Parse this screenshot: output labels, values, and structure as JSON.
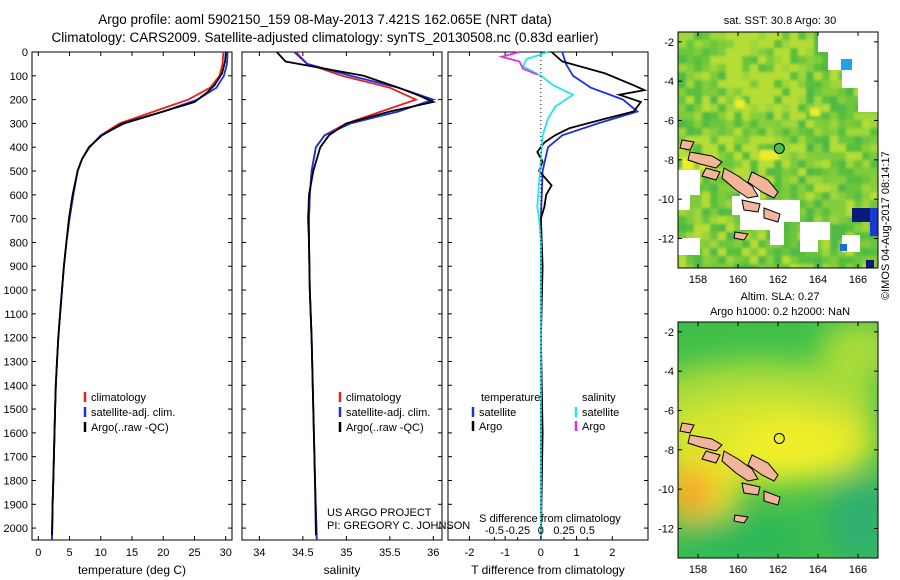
{
  "title": {
    "line1": "Argo profile: aoml 5902150_159 08-May-2013 7.421S 162.065E (NRT data)",
    "line2": "Climatology: CARS2009. Satellite-adjusted climatology: synTS_20130508.nc (0.83d earlier)"
  },
  "colors": {
    "climatology": "#e8201a",
    "satellite": "#1b2fe0",
    "argo": "#000000",
    "sat_salinity": "#22e6ef",
    "argo_salinity": "#e42ee0"
  },
  "depth_axis": {
    "ylim": [
      2050,
      0
    ],
    "ticks": [
      0,
      100,
      200,
      300,
      400,
      500,
      600,
      700,
      800,
      900,
      1000,
      1100,
      1200,
      1300,
      1400,
      1500,
      1600,
      1700,
      1800,
      1900,
      2000
    ]
  },
  "credit": {
    "line1": "US ARGO PROJECT",
    "line2": "PI: GREGORY C. JOHNSON"
  },
  "stamp": "©IMOS 04-Aug-2017 08:14:17",
  "chart_data": [
    {
      "type": "line",
      "id": "temperature",
      "xlabel": "temperature (deg C)",
      "ylabel": "depth",
      "xlim": [
        -1,
        31
      ],
      "ylim": [
        2050,
        0
      ],
      "xticks": [
        0,
        5,
        10,
        15,
        20,
        25,
        30
      ],
      "xtick_labels": [
        "0",
        "5",
        "10",
        "15",
        "20",
        "25",
        "30"
      ],
      "legend": [
        "climatology",
        "satellite-adj. clim.",
        "Argo(..raw -QC)"
      ],
      "series": [
        {
          "name": "climatology",
          "color": "#e8201a",
          "points": [
            [
              29.6,
              0
            ],
            [
              29.5,
              50
            ],
            [
              29,
              100
            ],
            [
              27.5,
              150
            ],
            [
              24,
              200
            ],
            [
              18.5,
              250
            ],
            [
              13,
              300
            ],
            [
              10,
              350
            ],
            [
              8.2,
              400
            ],
            [
              7,
              450
            ],
            [
              6.3,
              500
            ],
            [
              5.6,
              600
            ],
            [
              5,
              700
            ],
            [
              4.5,
              800
            ],
            [
              4.1,
              900
            ],
            [
              3.8,
              1000
            ],
            [
              3.5,
              1100
            ],
            [
              3.2,
              1200
            ],
            [
              3,
              1300
            ],
            [
              2.8,
              1400
            ],
            [
              2.7,
              1500
            ],
            [
              2.6,
              1600
            ],
            [
              2.5,
              1700
            ],
            [
              2.4,
              1800
            ],
            [
              2.3,
              1900
            ],
            [
              2.2,
              2050
            ]
          ]
        },
        {
          "name": "satellite",
          "color": "#1b2fe0",
          "points": [
            [
              30.3,
              0
            ],
            [
              30.2,
              50
            ],
            [
              29.7,
              100
            ],
            [
              28.5,
              150
            ],
            [
              25.5,
              200
            ],
            [
              20,
              250
            ],
            [
              13.8,
              300
            ],
            [
              10,
              350
            ],
            [
              8.2,
              400
            ],
            [
              7,
              450
            ],
            [
              6.3,
              500
            ],
            [
              5.6,
              600
            ],
            [
              5,
              700
            ],
            [
              4.5,
              800
            ],
            [
              4.1,
              900
            ],
            [
              3.8,
              1000
            ],
            [
              3.5,
              1100
            ],
            [
              3.2,
              1200
            ],
            [
              3,
              1300
            ],
            [
              2.8,
              1400
            ],
            [
              2.7,
              1500
            ],
            [
              2.6,
              1600
            ],
            [
              2.5,
              1700
            ],
            [
              2.4,
              1800
            ],
            [
              2.3,
              1900
            ],
            [
              2.2,
              2050
            ]
          ]
        },
        {
          "name": "argo",
          "color": "#000000",
          "points": [
            [
              30,
              0
            ],
            [
              29.9,
              40
            ],
            [
              29.4,
              90
            ],
            [
              28.2,
              140
            ],
            [
              27,
              170
            ],
            [
              25,
              210
            ],
            [
              20,
              250
            ],
            [
              13.5,
              300
            ],
            [
              10.2,
              350
            ],
            [
              8.1,
              400
            ],
            [
              7,
              450
            ],
            [
              6.3,
              500
            ],
            [
              5.5,
              600
            ],
            [
              4.9,
              700
            ],
            [
              4.5,
              800
            ],
            [
              4.1,
              900
            ],
            [
              3.8,
              1000
            ],
            [
              3.5,
              1100
            ],
            [
              3.2,
              1200
            ],
            [
              3,
              1300
            ],
            [
              2.8,
              1400
            ],
            [
              2.7,
              1500
            ],
            [
              2.6,
              1600
            ],
            [
              2.5,
              1700
            ],
            [
              2.4,
              1800
            ],
            [
              2.3,
              1900
            ],
            [
              2.2,
              2030
            ]
          ]
        }
      ]
    },
    {
      "type": "line",
      "id": "salinity",
      "xlabel": "salinity",
      "ylabel": "depth",
      "xlim": [
        33.8,
        36.1
      ],
      "xticks": [
        34,
        34.5,
        35,
        35.5,
        36
      ],
      "xtick_labels": [
        "34",
        "34.5",
        "35",
        "35.5",
        "36"
      ],
      "legend": [
        "climatology",
        "satellite-adj. clim.",
        "Argo(..raw -QC)"
      ],
      "series": [
        {
          "name": "climatology",
          "color": "#e8201a",
          "points": [
            [
              34.42,
              0
            ],
            [
              34.55,
              50
            ],
            [
              34.95,
              100
            ],
            [
              35.5,
              150
            ],
            [
              35.8,
              200
            ],
            [
              35.4,
              250
            ],
            [
              35,
              300
            ],
            [
              34.75,
              350
            ],
            [
              34.65,
              400
            ],
            [
              34.6,
              500
            ],
            [
              34.58,
              600
            ],
            [
              34.57,
              700
            ],
            [
              34.57,
              800
            ],
            [
              34.58,
              1000
            ],
            [
              34.6,
              1200
            ],
            [
              34.62,
              1500
            ],
            [
              34.64,
              1800
            ],
            [
              34.66,
              2050
            ]
          ]
        },
        {
          "name": "satellite",
          "color": "#1b2fe0",
          "points": [
            [
              34.4,
              0
            ],
            [
              34.55,
              50
            ],
            [
              35.05,
              100
            ],
            [
              35.6,
              150
            ],
            [
              36,
              200
            ],
            [
              35.6,
              250
            ],
            [
              35.05,
              300
            ],
            [
              34.75,
              350
            ],
            [
              34.65,
              400
            ],
            [
              34.6,
              500
            ],
            [
              34.58,
              600
            ],
            [
              34.57,
              700
            ],
            [
              34.57,
              800
            ],
            [
              34.58,
              1000
            ],
            [
              34.6,
              1200
            ],
            [
              34.62,
              1500
            ],
            [
              34.64,
              1800
            ],
            [
              34.66,
              2050
            ]
          ]
        },
        {
          "name": "argo",
          "color": "#000000",
          "points": [
            [
              34.2,
              0
            ],
            [
              34.3,
              40
            ],
            [
              34.9,
              80
            ],
            [
              35.2,
              100
            ],
            [
              35.6,
              150
            ],
            [
              35.85,
              185
            ],
            [
              36,
              210
            ],
            [
              35.5,
              250
            ],
            [
              35,
              300
            ],
            [
              34.8,
              350
            ],
            [
              34.7,
              400
            ],
            [
              34.62,
              500
            ],
            [
              34.57,
              600
            ],
            [
              34.56,
              700
            ],
            [
              34.57,
              800
            ],
            [
              34.58,
              1000
            ],
            [
              34.6,
              1200
            ],
            [
              34.62,
              1500
            ],
            [
              34.64,
              1800
            ],
            [
              34.65,
              2030
            ]
          ]
        }
      ]
    },
    {
      "type": "line",
      "id": "differences",
      "xlabel_top": "S difference from climatology",
      "xlabel": "T difference from climatology",
      "xlim_T": [
        -2.6,
        3
      ],
      "xticks_T": [
        -2,
        -1,
        0,
        1,
        2
      ],
      "xtick_labels_T": [
        "-2",
        "-1",
        "0",
        "1",
        "2"
      ],
      "xticks_S": [
        -0.5,
        -0.25,
        0,
        0.25,
        0.5
      ],
      "xtick_labels_S": [
        "-0.5",
        "-0.25",
        "0",
        "0.25",
        "0.5"
      ],
      "legend_headers": [
        "temperature",
        "salinity"
      ],
      "legend": [
        "satellite",
        "Argo",
        "satellite",
        "Argo"
      ],
      "series": [
        {
          "name": "T satellite",
          "color": "#1b2fe0",
          "points": [
            [
              0.6,
              0
            ],
            [
              0.7,
              50
            ],
            [
              0.9,
              100
            ],
            [
              1.4,
              150
            ],
            [
              2.3,
              200
            ],
            [
              2.7,
              250
            ],
            [
              1.6,
              300
            ],
            [
              0.6,
              350
            ],
            [
              0.2,
              400
            ],
            [
              0.05,
              500
            ],
            [
              0,
              700
            ],
            [
              0,
              1000
            ],
            [
              0,
              2050
            ]
          ]
        },
        {
          "name": "T argo",
          "color": "#000000",
          "points": [
            [
              0.3,
              0
            ],
            [
              0.6,
              40
            ],
            [
              1.8,
              90
            ],
            [
              2.6,
              140
            ],
            [
              2.9,
              160
            ],
            [
              2.2,
              180
            ],
            [
              2.8,
              210
            ],
            [
              2.6,
              250
            ],
            [
              1.8,
              280
            ],
            [
              0.8,
              320
            ],
            [
              0.4,
              350
            ],
            [
              0.1,
              380
            ],
            [
              -0.1,
              420
            ],
            [
              0.05,
              460
            ],
            [
              -0.05,
              500
            ],
            [
              0.3,
              560
            ],
            [
              0.15,
              600
            ],
            [
              0.1,
              650
            ],
            [
              0,
              700
            ],
            [
              0.05,
              900
            ],
            [
              0,
              1200
            ],
            [
              0.05,
              1600
            ],
            [
              0,
              2030
            ]
          ]
        },
        {
          "name": "S satellite",
          "color": "#22e6ef",
          "points": [
            [
              0.2,
              0
            ],
            [
              -0.4,
              30
            ],
            [
              -0.5,
              60
            ],
            [
              0,
              100
            ],
            [
              0.35,
              140
            ],
            [
              0.9,
              180
            ],
            [
              0.4,
              230
            ],
            [
              0.2,
              280
            ],
            [
              0.05,
              350
            ],
            [
              0,
              450
            ],
            [
              -0.05,
              550
            ],
            [
              -0.1,
              650
            ],
            [
              -0.05,
              700
            ],
            [
              0,
              800
            ],
            [
              0,
              1000
            ],
            [
              0,
              2050
            ]
          ]
        },
        {
          "name": "S argo",
          "color": "#e42ee0",
          "points": [
            [
              -0.6,
              0
            ],
            [
              -1.1,
              20
            ],
            [
              -0.6,
              40
            ],
            [
              -0.5,
              70
            ],
            [
              -0.1,
              95
            ]
          ]
        }
      ]
    }
  ],
  "maps": [
    {
      "id": "sst",
      "title": "sat. SST: 30.8 Argo: 30",
      "xlim": [
        157,
        167
      ],
      "ylim": [
        -13.5,
        -1.5
      ],
      "xticks": [
        158,
        160,
        162,
        164,
        166
      ],
      "yticks": [
        -2,
        -4,
        -6,
        -8,
        -10,
        -12
      ],
      "xtick_labels": [
        "158",
        "160",
        "162",
        "164",
        "166"
      ],
      "ytick_labels": [
        "-2",
        "-4",
        "-6",
        "-8",
        "-10",
        "-12"
      ],
      "marker": {
        "lon": 162.065,
        "lat": -7.421,
        "fill": "#4cc04c"
      }
    },
    {
      "id": "sla",
      "title_line1": "Altim. SLA: 0.27",
      "title_line2": "Argo h1000: 0.2 h2000: NaN",
      "xlim": [
        157,
        167
      ],
      "ylim": [
        -13.5,
        -1.5
      ],
      "xticks": [
        158,
        160,
        162,
        164,
        166
      ],
      "yticks": [
        -2,
        -4,
        -6,
        -8,
        -10,
        -12
      ],
      "xtick_labels": [
        "158",
        "160",
        "162",
        "164",
        "166"
      ],
      "ytick_labels": [
        "-2",
        "-4",
        "-6",
        "-8",
        "-10",
        "-12"
      ],
      "marker": {
        "lon": 162.065,
        "lat": -7.421,
        "fill": "none"
      }
    }
  ]
}
